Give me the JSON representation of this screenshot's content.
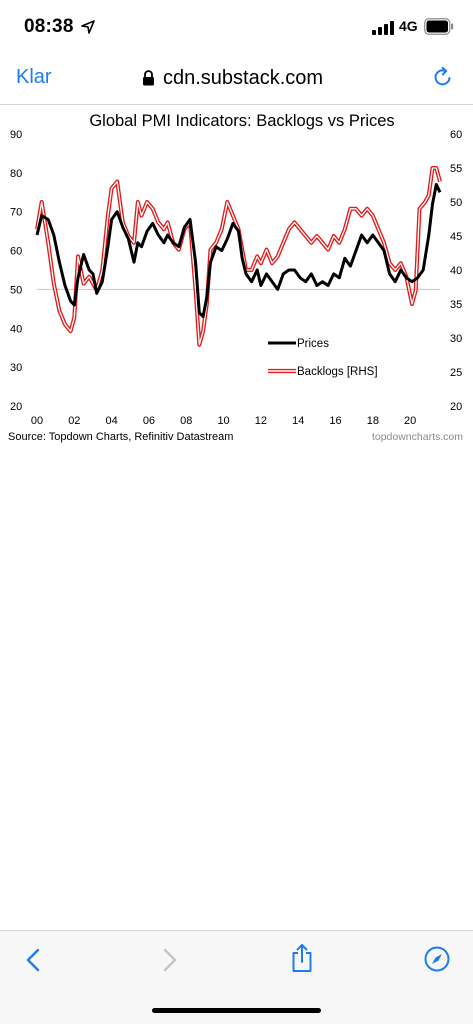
{
  "status_bar": {
    "time": "08:38",
    "network": "4G"
  },
  "browser": {
    "back_label": "Klar",
    "url": "cdn.substack.com"
  },
  "colors": {
    "accent": "#1f7cf0",
    "prices_series": "#000000",
    "backlogs_series": "#e21a1a"
  },
  "chart_data": {
    "type": "line",
    "title": "Global PMI Indicators: Backlogs vs Prices",
    "source": "Source: Topdown Charts, Refinitiv Datastream",
    "watermark": "topdowncharts.com",
    "x_tick_labels": [
      "00",
      "02",
      "04",
      "06",
      "08",
      "10",
      "12",
      "14",
      "16",
      "18",
      "20"
    ],
    "x_tick_years": [
      2000,
      2002,
      2004,
      2006,
      2008,
      2010,
      2012,
      2014,
      2016,
      2018,
      2020
    ],
    "xlim": [
      2000,
      2021.6
    ],
    "left_axis": {
      "ticks": [
        90,
        80,
        70,
        60,
        50,
        40,
        30,
        20
      ],
      "ylim": [
        20,
        90
      ]
    },
    "right_axis": {
      "ticks": [
        60,
        55,
        50,
        45,
        40,
        35,
        30,
        25,
        20
      ],
      "ylim": [
        20,
        60
      ]
    },
    "reference_line_left": 50,
    "legend": {
      "placement": "center-right",
      "entries": [
        "Prices",
        "Backlogs [RHS]"
      ]
    },
    "series": [
      {
        "name": "Prices",
        "axis": "left",
        "x": [
          2000.0,
          2000.25,
          2000.6,
          2000.9,
          2001.2,
          2001.5,
          2001.8,
          2002.0,
          2002.2,
          2002.5,
          2002.8,
          2003.0,
          2003.2,
          2003.5,
          2003.8,
          2004.0,
          2004.3,
          2004.6,
          2004.9,
          2005.2,
          2005.4,
          2005.6,
          2005.9,
          2006.2,
          2006.5,
          2006.8,
          2007.0,
          2007.3,
          2007.6,
          2007.9,
          2008.2,
          2008.5,
          2008.7,
          2008.9,
          2009.1,
          2009.3,
          2009.6,
          2009.9,
          2010.2,
          2010.5,
          2010.8,
          2011.0,
          2011.2,
          2011.5,
          2011.8,
          2012.0,
          2012.3,
          2012.6,
          2012.9,
          2013.2,
          2013.5,
          2013.8,
          2014.1,
          2014.4,
          2014.7,
          2015.0,
          2015.3,
          2015.6,
          2015.9,
          2016.2,
          2016.5,
          2016.8,
          2017.1,
          2017.4,
          2017.7,
          2018.0,
          2018.3,
          2018.6,
          2018.9,
          2019.2,
          2019.5,
          2019.8,
          2020.1,
          2020.4,
          2020.7,
          2021.0,
          2021.2,
          2021.4,
          2021.6
        ],
        "values": [
          64,
          69,
          68,
          64,
          57,
          51,
          47,
          46,
          53,
          59,
          55,
          54,
          49,
          52,
          61,
          68,
          70,
          66,
          63,
          57,
          62,
          61,
          65,
          67,
          64,
          62,
          64,
          62,
          61,
          66,
          68,
          57,
          44,
          43,
          48,
          57,
          61,
          60,
          63,
          67,
          65,
          58,
          54,
          52,
          55,
          51,
          54,
          52,
          50,
          54,
          55,
          55,
          53,
          52,
          54,
          51,
          52,
          51,
          54,
          53,
          58,
          56,
          60,
          64,
          62,
          64,
          62,
          60,
          54,
          52,
          55,
          53,
          52,
          53,
          55,
          64,
          72,
          77,
          75
        ]
      },
      {
        "name": "Backlogs [RHS]",
        "axis": "right",
        "x": [
          2000.0,
          2000.25,
          2000.6,
          2000.9,
          2001.2,
          2001.5,
          2001.8,
          2002.0,
          2002.2,
          2002.5,
          2002.8,
          2003.0,
          2003.2,
          2003.5,
          2003.8,
          2004.0,
          2004.3,
          2004.6,
          2004.9,
          2005.2,
          2005.4,
          2005.6,
          2005.9,
          2006.2,
          2006.5,
          2006.8,
          2007.0,
          2007.3,
          2007.6,
          2007.9,
          2008.2,
          2008.5,
          2008.7,
          2008.9,
          2009.1,
          2009.3,
          2009.6,
          2009.9,
          2010.2,
          2010.5,
          2010.8,
          2011.0,
          2011.2,
          2011.5,
          2011.8,
          2012.0,
          2012.3,
          2012.6,
          2012.9,
          2013.2,
          2013.5,
          2013.8,
          2014.1,
          2014.4,
          2014.7,
          2015.0,
          2015.3,
          2015.6,
          2015.9,
          2016.2,
          2016.5,
          2016.8,
          2017.1,
          2017.4,
          2017.7,
          2018.0,
          2018.3,
          2018.6,
          2018.9,
          2019.2,
          2019.5,
          2019.8,
          2020.1,
          2020.3,
          2020.5,
          2020.8,
          2021.0,
          2021.2,
          2021.4,
          2021.6
        ],
        "values": [
          46,
          50,
          44,
          38,
          34,
          32,
          31,
          33,
          42,
          38,
          39,
          38,
          37,
          40,
          48,
          52,
          53,
          47,
          45,
          44,
          50,
          48,
          50,
          49,
          47,
          46,
          47,
          44,
          43,
          46,
          47,
          37,
          29,
          31,
          35,
          43,
          44,
          46,
          50,
          48,
          46,
          43,
          40,
          40,
          42,
          41,
          43,
          41,
          42,
          44,
          46,
          47,
          46,
          45,
          44,
          45,
          44,
          43,
          45,
          44,
          46,
          49,
          49,
          48,
          49,
          48,
          46,
          44,
          41,
          40,
          41,
          39,
          35,
          37,
          49,
          50,
          51,
          55,
          55,
          53
        ]
      }
    ]
  }
}
